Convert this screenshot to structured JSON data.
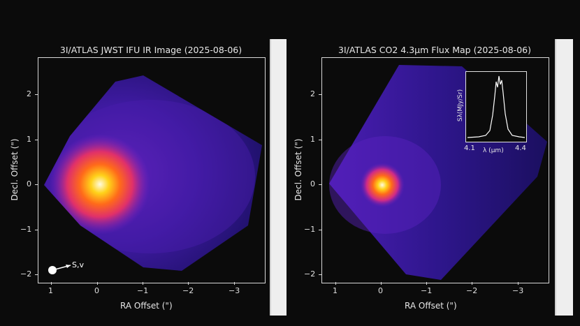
{
  "left_panel": {
    "title": "3I/ATLAS JWST IFU IR Image (2025-08-06)",
    "xlabel": "RA Offset (\")",
    "ylabel": "Decl. Offset (\")",
    "x_ticks": [
      "1",
      "0",
      "−1",
      "−2",
      "−3"
    ],
    "y_ticks": [
      "2",
      "1",
      "0",
      "−1",
      "−2"
    ],
    "direction_label": "S,v"
  },
  "right_panel": {
    "title": "3I/ATLAS CO2 4.3µm Flux Map (2025-08-06)",
    "xlabel": "RA Offset (\")",
    "ylabel": "Decl. Offset (\")",
    "x_ticks": [
      "1",
      "0",
      "−1",
      "−2",
      "−3"
    ],
    "y_ticks": [
      "2",
      "1",
      "0",
      "−1",
      "−2"
    ],
    "inset": {
      "ylabel": "Sλ(MJy/Sr)",
      "x_ticks": [
        "4.1",
        "4.4"
      ],
      "xlabel": "λ (µm)"
    }
  },
  "colors": {
    "background": "#0b0b0b",
    "colormap": [
      "#1b0f55",
      "#3a1a9a",
      "#7a22c9",
      "#e0306a",
      "#ff6a1a",
      "#ffd21a",
      "#fffbe0"
    ]
  }
}
